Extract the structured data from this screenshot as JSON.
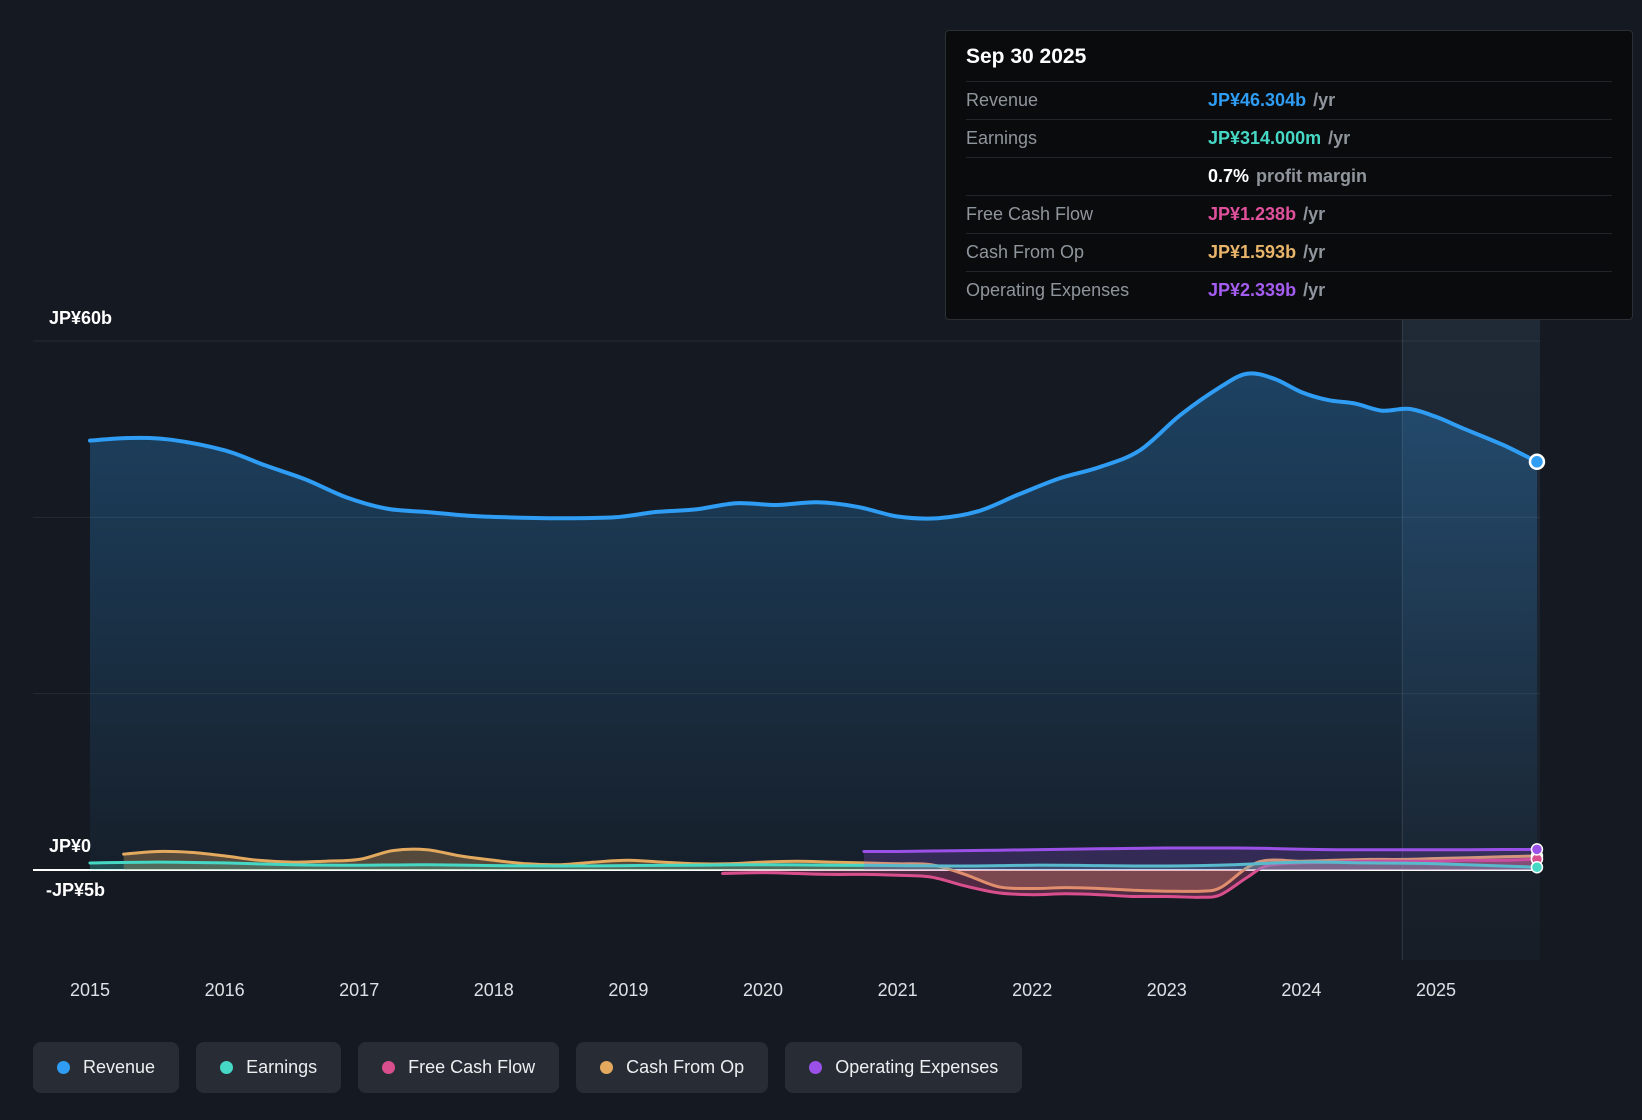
{
  "tooltip": {
    "date": "Sep 30 2025",
    "rows": [
      {
        "label": "Revenue",
        "value": "JP¥46.304b",
        "suffix": "/yr",
        "color": "#2f9df4"
      },
      {
        "label": "Earnings",
        "value": "JP¥314.000m",
        "suffix": "/yr",
        "color": "#46d8c5"
      },
      {
        "label": "",
        "value": "0.7%",
        "suffix": "profit margin",
        "color": "#ffffff"
      },
      {
        "label": "Free Cash Flow",
        "value": "JP¥1.238b",
        "suffix": "/yr",
        "color": "#e0519c"
      },
      {
        "label": "Cash From Op",
        "value": "JP¥1.593b",
        "suffix": "/yr",
        "color": "#e8b56a"
      },
      {
        "label": "Operating Expenses",
        "value": "JP¥2.339b",
        "suffix": "/yr",
        "color": "#a55cf0"
      }
    ]
  },
  "legend": {
    "items": [
      {
        "label": "Revenue",
        "color": "#2f9df4"
      },
      {
        "label": "Earnings",
        "color": "#46d8c5"
      },
      {
        "label": "Free Cash Flow",
        "color": "#d94f8e"
      },
      {
        "label": "Cash From Op",
        "color": "#e3aa5f"
      },
      {
        "label": "Operating Expenses",
        "color": "#9b51e8"
      }
    ]
  },
  "chart_data": {
    "type": "area",
    "unit": "JP¥ billions per year",
    "x_axis": {
      "ticks": [
        "2015",
        "2016",
        "2017",
        "2018",
        "2019",
        "2020",
        "2021",
        "2022",
        "2023",
        "2024",
        "2025"
      ]
    },
    "y_axis": {
      "labels": [
        {
          "text": "JP¥60b",
          "value": 60
        },
        {
          "text": "JP¥0",
          "value": 0
        },
        {
          "text": "-JP¥5b",
          "value": -5
        }
      ],
      "gridlines": [
        60,
        40,
        20,
        0
      ]
    },
    "highlight_band": {
      "start_year": 2024.75
    },
    "series": [
      {
        "name": "Revenue",
        "color": "#2f9df4",
        "line_width": 4,
        "area": "gradient",
        "area_opacity": 0.3,
        "points": [
          [
            2015,
            48.7
          ],
          [
            2015.3,
            49.0
          ],
          [
            2015.6,
            48.8
          ],
          [
            2016,
            47.6
          ],
          [
            2016.3,
            45.9
          ],
          [
            2016.6,
            44.3
          ],
          [
            2016.9,
            42.3
          ],
          [
            2017.2,
            41.0
          ],
          [
            2017.5,
            40.6
          ],
          [
            2017.8,
            40.2
          ],
          [
            2018.1,
            40.0
          ],
          [
            2018.5,
            39.9
          ],
          [
            2018.9,
            40.0
          ],
          [
            2019.2,
            40.6
          ],
          [
            2019.5,
            40.9
          ],
          [
            2019.8,
            41.6
          ],
          [
            2020.1,
            41.4
          ],
          [
            2020.4,
            41.7
          ],
          [
            2020.7,
            41.2
          ],
          [
            2021,
            40.1
          ],
          [
            2021.3,
            39.9
          ],
          [
            2021.6,
            40.7
          ],
          [
            2021.9,
            42.6
          ],
          [
            2022.2,
            44.4
          ],
          [
            2022.5,
            45.7
          ],
          [
            2022.8,
            47.6
          ],
          [
            2023.1,
            51.6
          ],
          [
            2023.4,
            54.8
          ],
          [
            2023.6,
            56.3
          ],
          [
            2023.8,
            55.7
          ],
          [
            2024,
            54.2
          ],
          [
            2024.2,
            53.3
          ],
          [
            2024.4,
            52.9
          ],
          [
            2024.6,
            52.1
          ],
          [
            2024.8,
            52.3
          ],
          [
            2025,
            51.4
          ],
          [
            2025.2,
            50.1
          ],
          [
            2025.5,
            48.2
          ],
          [
            2025.75,
            46.3
          ]
        ]
      },
      {
        "name": "Cash From Op",
        "color": "#e3aa5f",
        "line_width": 3,
        "area": "flat",
        "area_opacity": 0.3,
        "points": [
          [
            2015.25,
            1.8
          ],
          [
            2015.5,
            2.1
          ],
          [
            2015.75,
            2.0
          ],
          [
            2016,
            1.6
          ],
          [
            2016.25,
            1.1
          ],
          [
            2016.5,
            0.9
          ],
          [
            2016.75,
            1.0
          ],
          [
            2017,
            1.2
          ],
          [
            2017.25,
            2.2
          ],
          [
            2017.5,
            2.3
          ],
          [
            2017.75,
            1.6
          ],
          [
            2018,
            1.1
          ],
          [
            2018.25,
            0.7
          ],
          [
            2018.5,
            0.6
          ],
          [
            2018.75,
            0.9
          ],
          [
            2019,
            1.1
          ],
          [
            2019.25,
            0.9
          ],
          [
            2019.5,
            0.7
          ],
          [
            2019.75,
            0.7
          ],
          [
            2020,
            0.9
          ],
          [
            2020.25,
            1.0
          ],
          [
            2020.5,
            0.9
          ],
          [
            2020.75,
            0.8
          ],
          [
            2021,
            0.7
          ],
          [
            2021.25,
            0.6
          ],
          [
            2021.5,
            -0.5
          ],
          [
            2021.75,
            -1.9
          ],
          [
            2022,
            -2.1
          ],
          [
            2022.25,
            -2.0
          ],
          [
            2022.5,
            -2.1
          ],
          [
            2022.75,
            -2.3
          ],
          [
            2023,
            -2.4
          ],
          [
            2023.25,
            -2.4
          ],
          [
            2023.4,
            -2.0
          ],
          [
            2023.6,
            0.3
          ],
          [
            2023.75,
            1.1
          ],
          [
            2024,
            1.0
          ],
          [
            2024.25,
            1.1
          ],
          [
            2024.5,
            1.2
          ],
          [
            2024.75,
            1.2
          ],
          [
            2025,
            1.3
          ],
          [
            2025.25,
            1.4
          ],
          [
            2025.5,
            1.5
          ],
          [
            2025.75,
            1.593
          ]
        ]
      },
      {
        "name": "Free Cash Flow",
        "color": "#d94f8e",
        "line_width": 3,
        "area": "flat",
        "area_opacity": 0.3,
        "points": [
          [
            2019.7,
            -0.4
          ],
          [
            2020,
            -0.3
          ],
          [
            2020.25,
            -0.4
          ],
          [
            2020.5,
            -0.5
          ],
          [
            2020.75,
            -0.5
          ],
          [
            2021,
            -0.6
          ],
          [
            2021.25,
            -0.8
          ],
          [
            2021.5,
            -1.8
          ],
          [
            2021.75,
            -2.6
          ],
          [
            2022,
            -2.8
          ],
          [
            2022.25,
            -2.7
          ],
          [
            2022.5,
            -2.8
          ],
          [
            2022.75,
            -3.0
          ],
          [
            2023,
            -3.0
          ],
          [
            2023.25,
            -3.1
          ],
          [
            2023.4,
            -2.8
          ],
          [
            2023.6,
            -0.8
          ],
          [
            2023.75,
            0.5
          ],
          [
            2024,
            0.8
          ],
          [
            2024.25,
            0.9
          ],
          [
            2024.5,
            1.0
          ],
          [
            2024.75,
            1.0
          ],
          [
            2025,
            1.0
          ],
          [
            2025.25,
            1.1
          ],
          [
            2025.5,
            1.1
          ],
          [
            2025.75,
            1.238
          ]
        ]
      },
      {
        "name": "Earnings",
        "color": "#46d8c5",
        "line_width": 3,
        "area": "flat",
        "area_opacity": 0.25,
        "points": [
          [
            2015,
            0.8
          ],
          [
            2015.5,
            0.9
          ],
          [
            2016,
            0.8
          ],
          [
            2016.5,
            0.6
          ],
          [
            2017,
            0.55
          ],
          [
            2017.5,
            0.6
          ],
          [
            2018,
            0.5
          ],
          [
            2018.5,
            0.45
          ],
          [
            2019,
            0.5
          ],
          [
            2019.5,
            0.55
          ],
          [
            2020,
            0.6
          ],
          [
            2020.5,
            0.55
          ],
          [
            2021,
            0.5
          ],
          [
            2021.5,
            0.45
          ],
          [
            2022,
            0.55
          ],
          [
            2022.5,
            0.5
          ],
          [
            2023,
            0.45
          ],
          [
            2023.5,
            0.6
          ],
          [
            2024,
            0.9
          ],
          [
            2024.5,
            0.8
          ],
          [
            2025,
            0.7
          ],
          [
            2025.75,
            0.314
          ]
        ]
      },
      {
        "name": "Operating Expenses",
        "color": "#9b51e8",
        "line_width": 3,
        "area": "flat",
        "area_opacity": 0.22,
        "points": [
          [
            2020.75,
            2.1
          ],
          [
            2021,
            2.1
          ],
          [
            2021.25,
            2.15
          ],
          [
            2021.5,
            2.2
          ],
          [
            2021.75,
            2.25
          ],
          [
            2022,
            2.3
          ],
          [
            2022.25,
            2.35
          ],
          [
            2022.5,
            2.4
          ],
          [
            2022.75,
            2.45
          ],
          [
            2023,
            2.5
          ],
          [
            2023.25,
            2.5
          ],
          [
            2023.5,
            2.5
          ],
          [
            2023.75,
            2.45
          ],
          [
            2024,
            2.35
          ],
          [
            2024.25,
            2.3
          ],
          [
            2024.5,
            2.3
          ],
          [
            2024.75,
            2.3
          ],
          [
            2025,
            2.3
          ],
          [
            2025.25,
            2.3
          ],
          [
            2025.5,
            2.32
          ],
          [
            2025.75,
            2.339
          ]
        ]
      }
    ]
  }
}
